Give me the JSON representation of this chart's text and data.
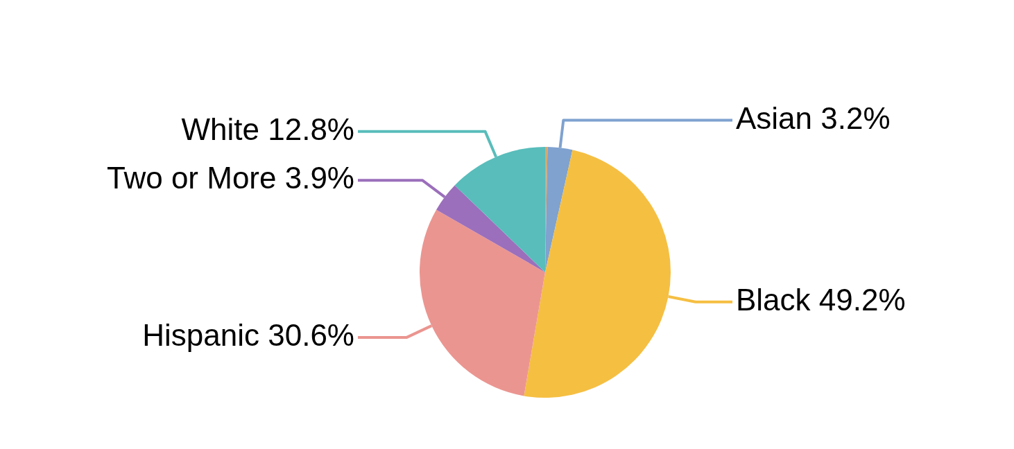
{
  "chart_data": {
    "type": "pie",
    "categories": [
      null,
      "Asian",
      "Black",
      "Hispanic",
      "Two or More",
      "White"
    ],
    "values": [
      0.3,
      3.2,
      49.2,
      30.6,
      3.9,
      12.8
    ],
    "value_labels": [
      null,
      "3.2%",
      "49.2%",
      "30.6%",
      "3.9%",
      "12.8%"
    ],
    "colors": [
      "#d9a86c",
      "#7fa2cf",
      "#f5bf42",
      "#eb9590",
      "#9b6fbb",
      "#58bdbb"
    ],
    "legend": false
  }
}
